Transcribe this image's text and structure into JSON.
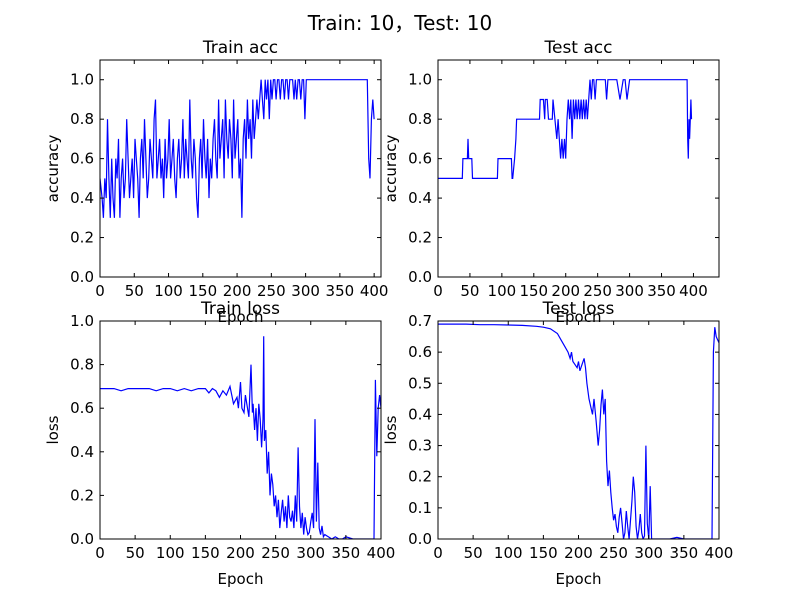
{
  "figure": {
    "suptitle": "Train: 10，Test: 10"
  },
  "chart_data": [
    {
      "type": "line",
      "title": "Train acc",
      "xlabel": "Epoch",
      "ylabel": "accuracy",
      "xlim": [
        0,
        410
      ],
      "ylim": [
        0,
        1.1
      ],
      "xticks": [
        0,
        50,
        100,
        150,
        200,
        250,
        300,
        350,
        400
      ],
      "yticks": [
        0.0,
        0.2,
        0.4,
        0.6,
        0.8,
        1.0
      ],
      "ytick_labels": [
        "0.0",
        "0.2",
        "0.4",
        "0.6",
        "0.8",
        "1.0"
      ],
      "color": "#0000ff",
      "series": [
        {
          "x": [
            0,
            3,
            5,
            7,
            9,
            11,
            13,
            15,
            17,
            19,
            21,
            23,
            25,
            27,
            29,
            31,
            33,
            35,
            37,
            39,
            41,
            43,
            45,
            47,
            49,
            51,
            53,
            55,
            57,
            59,
            61,
            63,
            65,
            67,
            69,
            71,
            73,
            75,
            77,
            79,
            81,
            83,
            85,
            87,
            89,
            91,
            93,
            95,
            97,
            99,
            101,
            103,
            105,
            107,
            109,
            111,
            113,
            115,
            117,
            119,
            121,
            123,
            125,
            127,
            129,
            131,
            133,
            135,
            137,
            139,
            141,
            143,
            145,
            147,
            149,
            151,
            153,
            155,
            157,
            159,
            161,
            163,
            165,
            167,
            169,
            171,
            173,
            175,
            177,
            179,
            181,
            183,
            185,
            187,
            189,
            191,
            193,
            195,
            197,
            199,
            201,
            203,
            205,
            207,
            209,
            211,
            213,
            215,
            217,
            219,
            221,
            223,
            225,
            227,
            229,
            231,
            233,
            235,
            237,
            239,
            241,
            243,
            245,
            247,
            249,
            251,
            253,
            255,
            257,
            259,
            261,
            263,
            265,
            267,
            269,
            271,
            273,
            275,
            277,
            279,
            281,
            283,
            285,
            287,
            289,
            291,
            293,
            295,
            297,
            299,
            301,
            303,
            305,
            390,
            392,
            394,
            396,
            398,
            400
          ],
          "y": [
            0.5,
            0.4,
            0.3,
            0.5,
            0.4,
            0.8,
            0.5,
            0.3,
            0.6,
            0.4,
            0.3,
            0.6,
            0.5,
            0.7,
            0.3,
            0.5,
            0.6,
            0.4,
            0.5,
            0.8,
            0.6,
            0.4,
            0.5,
            0.6,
            0.4,
            0.7,
            0.6,
            0.5,
            0.3,
            0.6,
            0.7,
            0.5,
            0.8,
            0.6,
            0.4,
            0.5,
            0.7,
            0.6,
            0.5,
            0.8,
            0.9,
            0.5,
            0.6,
            0.7,
            0.5,
            0.6,
            0.4,
            0.7,
            0.5,
            0.6,
            0.8,
            0.5,
            0.6,
            0.7,
            0.5,
            0.4,
            0.6,
            0.7,
            0.5,
            0.6,
            0.8,
            0.5,
            0.7,
            0.6,
            0.5,
            0.9,
            0.6,
            0.5,
            0.7,
            0.6,
            0.4,
            0.3,
            0.6,
            0.7,
            0.5,
            0.8,
            0.6,
            0.5,
            0.7,
            0.4,
            0.6,
            0.5,
            0.7,
            0.8,
            0.6,
            0.5,
            0.9,
            0.6,
            0.7,
            0.8,
            0.5,
            0.9,
            0.7,
            0.6,
            0.8,
            0.7,
            0.5,
            0.9,
            0.6,
            0.7,
            0.8,
            0.5,
            0.6,
            0.3,
            0.7,
            0.8,
            0.6,
            0.9,
            0.7,
            0.8,
            0.6,
            0.9,
            0.7,
            0.8,
            0.9,
            0.8,
            0.9,
            1.0,
            0.9,
            0.8,
            1.0,
            0.9,
            1.0,
            0.8,
            1.0,
            0.9,
            1.0,
            1.0,
            0.9,
            1.0,
            1.0,
            0.9,
            1.0,
            1.0,
            0.9,
            1.0,
            1.0,
            0.9,
            1.0,
            1.0,
            1.0,
            0.9,
            1.0,
            0.9,
            1.0,
            1.0,
            0.9,
            1.0,
            1.0,
            0.8,
            1.0,
            1.0,
            1.0,
            1.0,
            0.6,
            0.5,
            0.8,
            0.9,
            0.8
          ]
        }
      ]
    },
    {
      "type": "line",
      "title": "Test acc",
      "xlabel": "Epoch",
      "ylabel": "accuracy",
      "xlim": [
        0,
        440
      ],
      "ylim": [
        0,
        1.1
      ],
      "xticks": [
        0,
        50,
        100,
        150,
        200,
        250,
        300,
        350,
        400
      ],
      "yticks": [
        0.0,
        0.2,
        0.4,
        0.6,
        0.8,
        1.0
      ],
      "ytick_labels": [
        "0.0",
        "0.2",
        "0.4",
        "0.6",
        "0.8",
        "1.0"
      ],
      "color": "#0000ff",
      "series": [
        {
          "x": [
            0,
            38,
            39,
            46,
            47,
            48,
            49,
            53,
            54,
            93,
            94,
            115,
            116,
            117,
            120,
            122,
            123,
            124,
            128,
            159,
            160,
            165,
            167,
            168,
            171,
            173,
            179,
            180,
            183,
            186,
            188,
            190,
            192,
            194,
            196,
            198,
            200,
            202,
            204,
            206,
            208,
            210,
            212,
            214,
            216,
            218,
            220,
            222,
            224,
            226,
            228,
            230,
            232,
            234,
            236,
            238,
            240,
            242,
            244,
            246,
            248,
            250,
            255,
            262,
            264,
            266,
            270,
            275,
            280,
            285,
            290,
            293,
            296,
            300,
            305,
            310,
            320,
            330,
            340,
            350,
            360,
            370,
            380,
            390,
            391,
            392,
            393,
            394,
            395,
            396,
            397
          ],
          "y": [
            0.5,
            0.5,
            0.6,
            0.6,
            0.7,
            0.6,
            0.6,
            0.6,
            0.5,
            0.5,
            0.6,
            0.6,
            0.5,
            0.5,
            0.6,
            0.7,
            0.8,
            0.8,
            0.8,
            0.8,
            0.9,
            0.9,
            0.8,
            0.9,
            0.9,
            0.8,
            0.8,
            0.9,
            0.8,
            0.7,
            0.8,
            0.7,
            0.6,
            0.7,
            0.6,
            0.7,
            0.6,
            0.8,
            0.9,
            0.8,
            0.9,
            0.7,
            0.9,
            0.8,
            0.9,
            0.8,
            0.9,
            0.8,
            0.9,
            0.8,
            0.9,
            0.8,
            0.9,
            0.8,
            0.9,
            1.0,
            0.9,
            1.0,
            1.0,
            0.9,
            1.0,
            1.0,
            1.0,
            1.0,
            0.9,
            1.0,
            1.0,
            1.0,
            1.0,
            0.9,
            1.0,
            1.0,
            0.9,
            1.0,
            1.0,
            1.0,
            1.0,
            1.0,
            1.0,
            1.0,
            1.0,
            1.0,
            1.0,
            1.0,
            0.7,
            0.6,
            0.8,
            0.7,
            0.8,
            0.9,
            0.8
          ]
        }
      ]
    },
    {
      "type": "line",
      "title": "Train loss",
      "xlabel": "Epoch",
      "ylabel": "loss",
      "xlim": [
        0,
        400
      ],
      "ylim": [
        0,
        1.0
      ],
      "xticks": [
        0,
        50,
        100,
        150,
        200,
        250,
        300,
        350,
        400
      ],
      "yticks": [
        0.0,
        0.2,
        0.4,
        0.6,
        0.8,
        1.0
      ],
      "ytick_labels": [
        "0.0",
        "0.2",
        "0.4",
        "0.6",
        "0.8",
        "1.0"
      ],
      "color": "#0000ff",
      "series": [
        {
          "x": [
            0,
            10,
            20,
            30,
            40,
            50,
            60,
            70,
            80,
            90,
            100,
            110,
            120,
            130,
            140,
            150,
            155,
            160,
            165,
            170,
            175,
            180,
            185,
            190,
            195,
            197,
            200,
            202,
            205,
            207,
            210,
            212,
            215,
            217,
            218,
            220,
            222,
            224,
            226,
            228,
            230,
            232,
            233,
            234,
            236,
            238,
            240,
            242,
            244,
            246,
            248,
            250,
            252,
            254,
            256,
            258,
            260,
            262,
            264,
            266,
            268,
            270,
            272,
            274,
            276,
            278,
            280,
            282,
            284,
            286,
            288,
            290,
            292,
            294,
            296,
            298,
            300,
            302,
            304,
            306,
            308,
            310,
            312,
            314,
            316,
            318,
            320,
            325,
            330,
            335,
            340,
            345,
            350,
            360,
            370,
            380,
            385,
            390,
            392,
            394,
            396,
            398,
            400
          ],
          "y": [
            0.69,
            0.69,
            0.69,
            0.68,
            0.69,
            0.69,
            0.69,
            0.69,
            0.68,
            0.69,
            0.69,
            0.68,
            0.69,
            0.68,
            0.69,
            0.69,
            0.67,
            0.69,
            0.68,
            0.65,
            0.68,
            0.66,
            0.7,
            0.62,
            0.65,
            0.6,
            0.72,
            0.6,
            0.58,
            0.66,
            0.6,
            0.56,
            0.8,
            0.58,
            0.62,
            0.5,
            0.6,
            0.45,
            0.62,
            0.55,
            0.42,
            0.55,
            0.93,
            0.45,
            0.5,
            0.3,
            0.4,
            0.2,
            0.3,
            0.25,
            0.15,
            0.2,
            0.1,
            0.18,
            0.05,
            0.12,
            0.18,
            0.08,
            0.15,
            0.05,
            0.2,
            0.1,
            0.08,
            0.13,
            0.05,
            0.2,
            0.08,
            0.42,
            0.15,
            0.05,
            0.12,
            0.02,
            0.1,
            0.05,
            0.02,
            0.03,
            0.08,
            0.12,
            0.05,
            0.55,
            0.08,
            0.35,
            0.05,
            0.02,
            0.06,
            0.01,
            0.02,
            0.01,
            0.0,
            0.01,
            0.0,
            0.0,
            0.01,
            0.0,
            0.0,
            0.0,
            0.0,
            0.0,
            0.73,
            0.38,
            0.6,
            0.66,
            0.6
          ]
        }
      ]
    },
    {
      "type": "line",
      "title": "Test loss",
      "xlabel": "Epoch",
      "ylabel": "loss",
      "xlim": [
        0,
        400
      ],
      "ylim": [
        0,
        0.7
      ],
      "xticks": [
        0,
        50,
        100,
        150,
        200,
        250,
        300,
        350,
        400
      ],
      "yticks": [
        0.0,
        0.1,
        0.2,
        0.3,
        0.4,
        0.5,
        0.6,
        0.7
      ],
      "ytick_labels": [
        "0.0",
        "0.1",
        "0.2",
        "0.3",
        "0.4",
        "0.5",
        "0.6",
        "0.7"
      ],
      "color": "#0000ff",
      "series": [
        {
          "x": [
            0,
            20,
            40,
            60,
            80,
            100,
            120,
            140,
            150,
            160,
            170,
            175,
            180,
            185,
            188,
            190,
            192,
            195,
            198,
            200,
            202,
            205,
            208,
            210,
            212,
            215,
            218,
            220,
            222,
            225,
            228,
            230,
            232,
            234,
            236,
            238,
            240,
            242,
            244,
            246,
            248,
            250,
            252,
            254,
            256,
            258,
            260,
            262,
            264,
            266,
            268,
            270,
            272,
            274,
            276,
            278,
            280,
            282,
            284,
            286,
            288,
            290,
            292,
            294,
            296,
            298,
            300,
            302,
            304,
            306,
            308,
            310,
            320,
            330,
            340,
            350,
            360,
            370,
            380,
            390,
            392,
            394,
            396,
            398,
            400
          ],
          "y": [
            0.69,
            0.69,
            0.69,
            0.688,
            0.688,
            0.687,
            0.686,
            0.683,
            0.68,
            0.675,
            0.66,
            0.64,
            0.62,
            0.6,
            0.58,
            0.6,
            0.57,
            0.56,
            0.55,
            0.57,
            0.54,
            0.56,
            0.58,
            0.55,
            0.5,
            0.45,
            0.42,
            0.4,
            0.45,
            0.38,
            0.3,
            0.35,
            0.43,
            0.48,
            0.4,
            0.45,
            0.25,
            0.17,
            0.22,
            0.15,
            0.1,
            0.06,
            0.08,
            0.04,
            0.02,
            0.07,
            0.1,
            0.05,
            0.0,
            0.02,
            0.09,
            0.04,
            0.0,
            0.06,
            0.12,
            0.2,
            0.15,
            0.04,
            0.0,
            0.03,
            0.08,
            0.02,
            0.0,
            0.01,
            0.3,
            0.05,
            0.0,
            0.17,
            0.0,
            0.0,
            0.0,
            0.0,
            0.0,
            0.0,
            0.005,
            0.0,
            0.0,
            0.0,
            0.0,
            0.0,
            0.6,
            0.68,
            0.65,
            0.64,
            0.63
          ]
        }
      ]
    }
  ]
}
